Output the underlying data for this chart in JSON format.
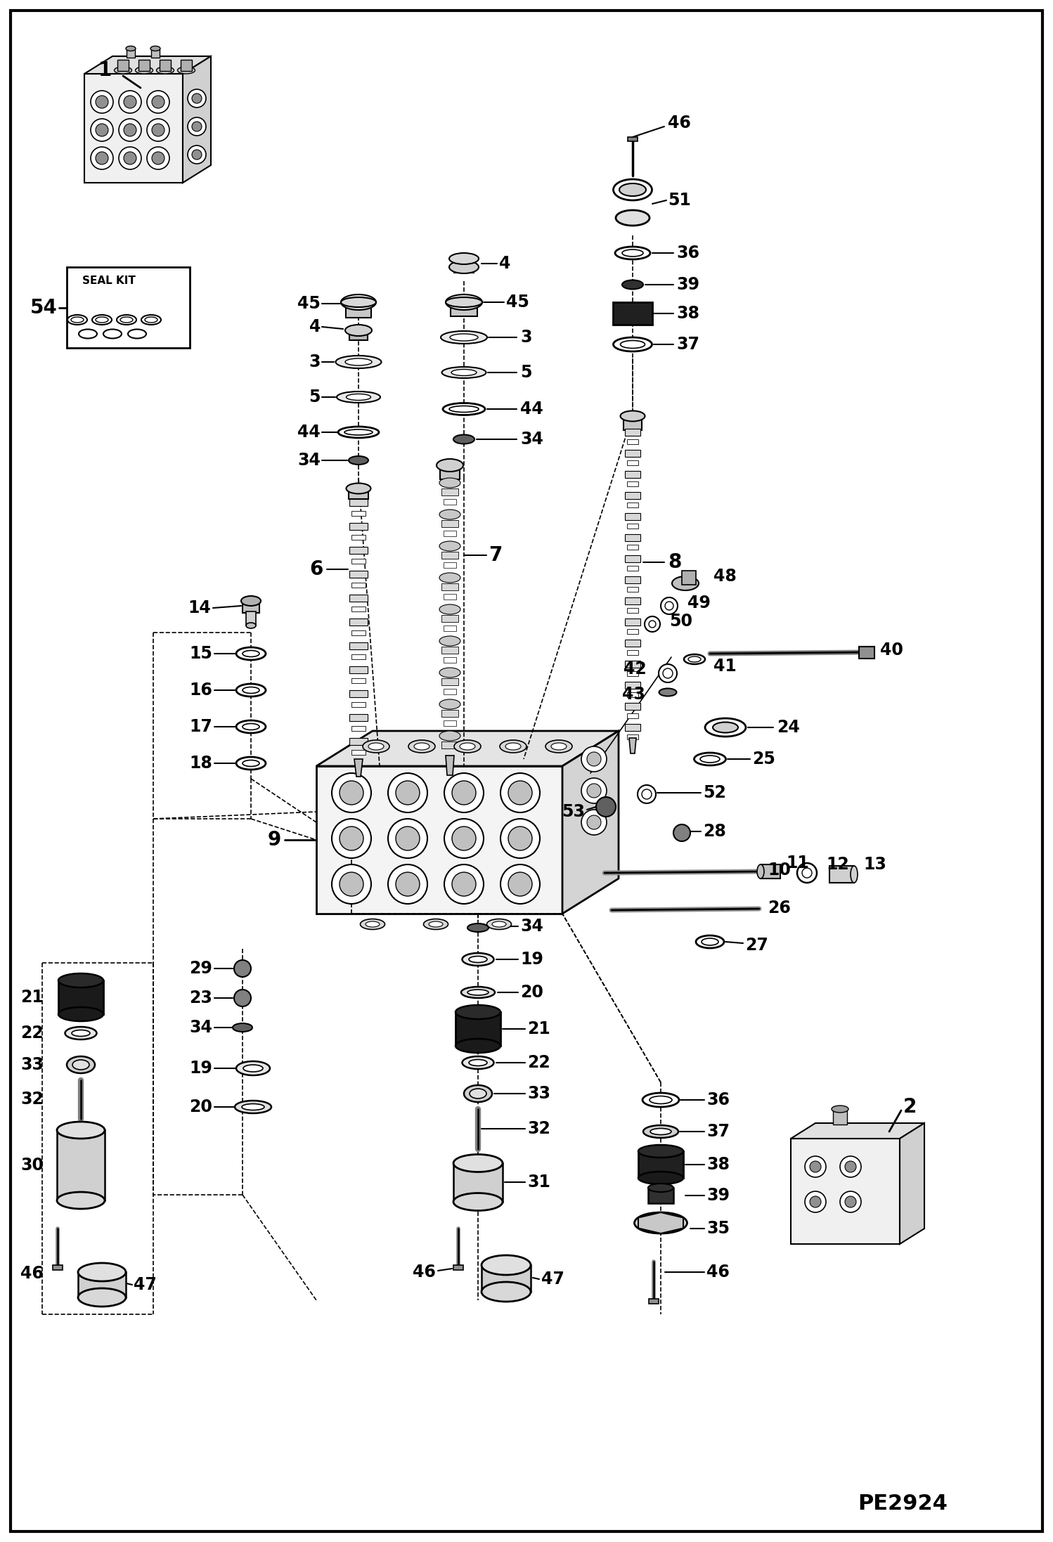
{
  "fig_width": 14.98,
  "fig_height": 21.94,
  "dpi": 100,
  "bg_color": "#ffffff",
  "border_color": "#000000",
  "diagram_id": "PE2924"
}
